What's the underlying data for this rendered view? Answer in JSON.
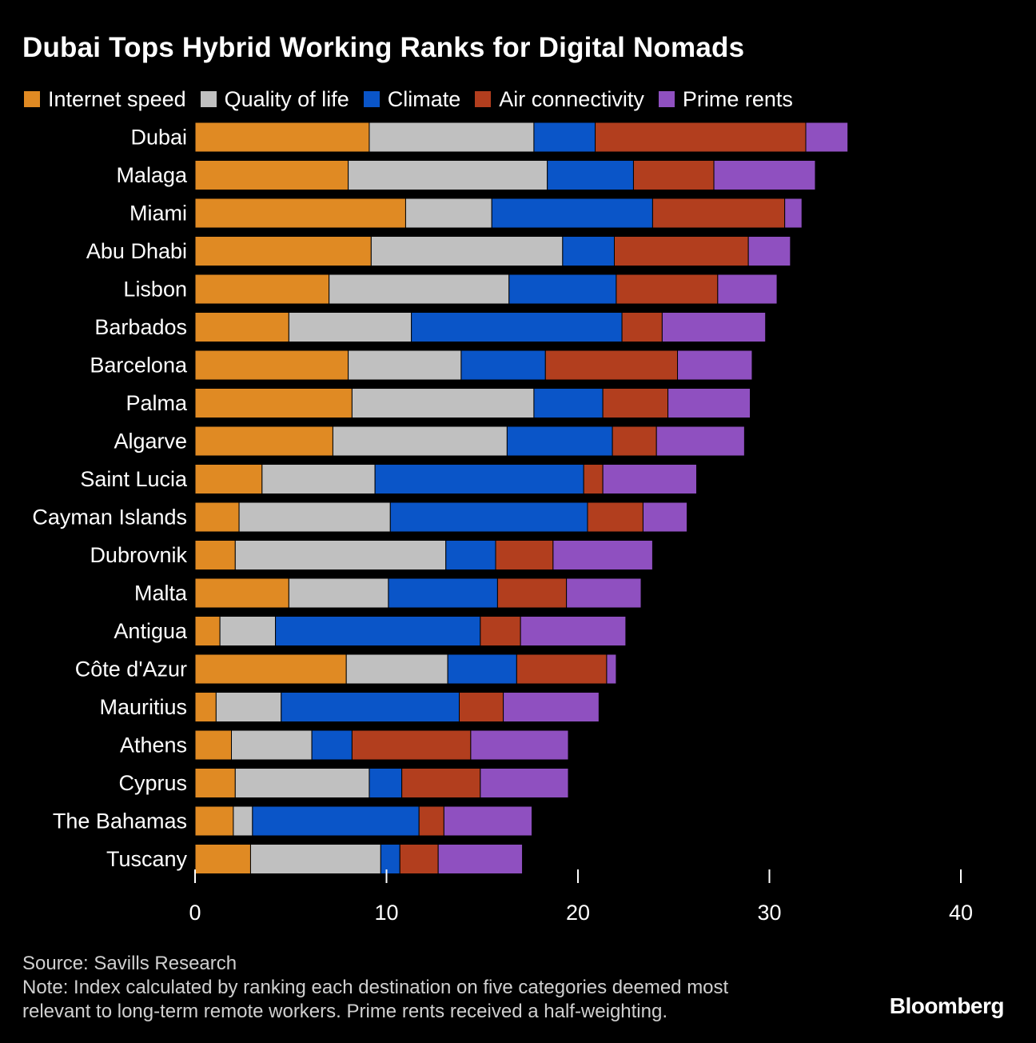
{
  "title": "Dubai Tops Hybrid Working Ranks for Digital Nomads",
  "legend": [
    {
      "label": "Internet speed",
      "color": "#E08A23"
    },
    {
      "label": "Quality of life",
      "color": "#C0C0C0"
    },
    {
      "label": "Climate",
      "color": "#0A55C8"
    },
    {
      "label": "Air connectivity",
      "color": "#B23E1E"
    },
    {
      "label": "Prime rents",
      "color": "#8F50C0"
    }
  ],
  "chart_data": {
    "type": "bar",
    "orientation": "horizontal",
    "stacked": true,
    "title": "Dubai Tops Hybrid Working Ranks for Digital Nomads",
    "xlabel": "",
    "ylabel": "",
    "xlim": [
      0,
      40
    ],
    "xticks": [
      "0",
      "10",
      "20",
      "30",
      "40"
    ],
    "categories": [
      "Dubai",
      "Malaga",
      "Miami",
      "Abu Dhabi",
      "Lisbon",
      "Barbados",
      "Barcelona",
      "Palma",
      "Algarve",
      "Saint Lucia",
      "Cayman Islands",
      "Dubrovnik",
      "Malta",
      "Antigua",
      "Côte d'Azur",
      "Mauritius",
      "Athens",
      "Cyprus",
      "The Bahamas",
      "Tuscany"
    ],
    "series": [
      {
        "name": "Internet speed",
        "color": "#E08A23",
        "values": [
          9.1,
          8.0,
          11.0,
          9.2,
          7.0,
          4.9,
          8.0,
          8.2,
          7.2,
          3.5,
          2.3,
          2.1,
          4.9,
          1.3,
          7.9,
          1.1,
          1.9,
          2.1,
          2.0,
          2.9
        ]
      },
      {
        "name": "Quality of life",
        "color": "#C0C0C0",
        "values": [
          8.6,
          10.4,
          4.5,
          10.0,
          9.4,
          6.4,
          5.9,
          9.5,
          9.1,
          5.9,
          7.9,
          11.0,
          5.2,
          2.9,
          5.3,
          3.4,
          4.2,
          7.0,
          1.0,
          6.8
        ]
      },
      {
        "name": "Climate",
        "color": "#0A55C8",
        "values": [
          3.2,
          4.5,
          8.4,
          2.7,
          5.6,
          11.0,
          4.4,
          3.6,
          5.5,
          10.9,
          10.3,
          2.6,
          5.7,
          10.7,
          3.6,
          9.3,
          2.1,
          1.7,
          8.7,
          1.0
        ]
      },
      {
        "name": "Air connectivity",
        "color": "#B23E1E",
        "values": [
          11.0,
          4.2,
          6.9,
          7.0,
          5.3,
          2.1,
          6.9,
          3.4,
          2.3,
          1.0,
          2.9,
          3.0,
          3.6,
          2.1,
          4.7,
          2.3,
          6.2,
          4.1,
          1.3,
          2.0
        ]
      },
      {
        "name": "Prime rents",
        "color": "#8F50C0",
        "values": [
          2.2,
          5.3,
          0.9,
          2.2,
          3.1,
          5.4,
          3.9,
          4.3,
          4.6,
          4.9,
          2.3,
          5.2,
          3.9,
          5.5,
          0.5,
          5.0,
          5.1,
          4.6,
          4.6,
          4.4
        ]
      }
    ]
  },
  "footer": {
    "source": "Source: Savills Research",
    "note_line1": "Note: Index calculated by ranking each destination on five categories deemed most",
    "note_line2": "relevant to long-term remote workers. Prime rents received a half-weighting."
  },
  "brand": "Bloomberg"
}
